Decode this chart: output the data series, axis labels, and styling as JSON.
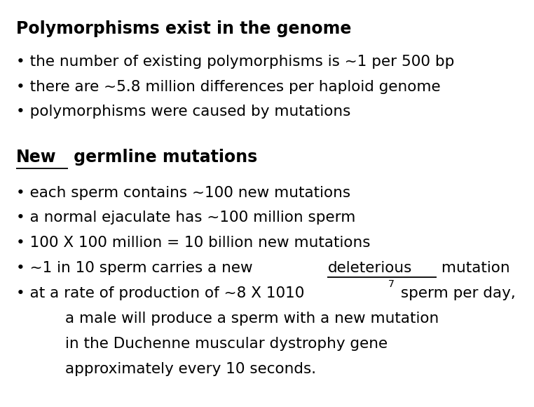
{
  "background_color": "#ffffff",
  "title": "Polymorphisms exist in the genome",
  "title_fontsize": 17,
  "body_fontsize": 15.5,
  "figsize": [
    7.62,
    5.8
  ],
  "dpi": 100,
  "section1_bullets": [
    "the number of existing polymorphisms is ~1 per 500 bp",
    "there are ~5.8 million differences per haploid genome",
    "polymorphisms were caused by mutations"
  ],
  "section2_title_underlined": "New",
  "section2_title_normal": " germline mutations",
  "section2_bullets": [
    "each sperm contains ~100 new mutations",
    "a normal ejaculate has ~100 million sperm",
    "100 X 100 million = 10 billion new mutations",
    "~1 in 10 sperm carries a new {deleterious} mutation",
    "at a rate of production of ~8 X 10{7} sperm per day,"
  ],
  "section2_continuation": [
    "a male will produce a sperm with a new mutation",
    "in the Duchenne muscular dystrophy gene",
    "approximately every 10 seconds."
  ],
  "text_color": "#000000",
  "font_family": "DejaVu Sans"
}
